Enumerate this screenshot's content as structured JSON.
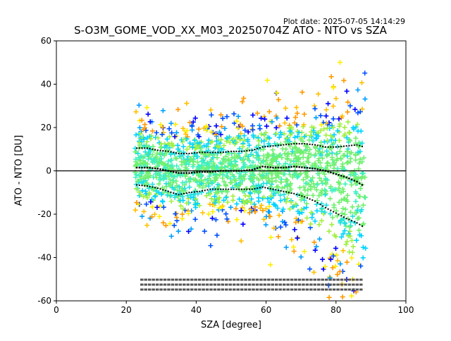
{
  "header": {
    "plot_date": "Plot date: 2025-07-05 14:14:29",
    "title": "S-O3M_GOME_VOD_XX_M03_20250704Z ATO - NTO vs SZA"
  },
  "chart_data": {
    "type": "scatter",
    "title": "S-O3M_GOME_VOD_XX_M03_20250704Z ATO - NTO vs SZA",
    "xlabel": "SZA [degree]",
    "ylabel": "ATO - NTO [DU]",
    "xlim": [
      0,
      100
    ],
    "ylim": [
      -60,
      60
    ],
    "xticks": [
      0,
      20,
      40,
      60,
      80,
      100
    ],
    "yticks": [
      -60,
      -40,
      -20,
      0,
      20,
      40,
      60
    ],
    "grid": false,
    "reference_line": {
      "y": 0,
      "color": "#000000"
    },
    "marker": "+",
    "point_colors": [
      "#0000ff",
      "#0050ff",
      "#00a0ff",
      "#00d4ff",
      "#20e0e0",
      "#40f0c0",
      "#70f070",
      "#a0f040",
      "#ffee00",
      "#ffc000",
      "#ff9900"
    ],
    "scatter_regions": [
      {
        "x_range": [
          22.5,
          88.5
        ],
        "color_band": "core",
        "description": ""
      }
    ],
    "mean_curve": {
      "x": [
        23,
        26,
        29,
        32,
        35,
        38,
        41,
        44,
        47,
        50,
        53,
        56,
        59,
        62,
        65,
        68,
        71,
        74,
        77,
        80,
        83,
        86,
        88
      ],
      "y": [
        1.5,
        1.5,
        1.0,
        0.0,
        -1.0,
        -1.0,
        -0.5,
        -0.5,
        0.0,
        0.0,
        0.0,
        0.5,
        2.0,
        1.5,
        1.5,
        2.0,
        1.5,
        1.0,
        0.0,
        -1.5,
        -3.0,
        -5.0,
        -7.0
      ]
    },
    "upper_std_curve": {
      "x": [
        23,
        26,
        29,
        32,
        35,
        38,
        41,
        44,
        47,
        50,
        53,
        56,
        59,
        62,
        65,
        68,
        71,
        74,
        77,
        80,
        83,
        86,
        88
      ],
      "y": [
        10.5,
        10.5,
        9.5,
        9.0,
        8.0,
        8.0,
        8.5,
        8.5,
        8.5,
        9.0,
        9.0,
        9.5,
        11.0,
        11.5,
        12.0,
        12.5,
        12.5,
        12.0,
        11.0,
        11.0,
        11.5,
        12.0,
        11.0
      ]
    },
    "lower_std_curve": {
      "x": [
        23,
        26,
        29,
        32,
        35,
        38,
        41,
        44,
        47,
        50,
        53,
        56,
        59,
        62,
        65,
        68,
        71,
        74,
        77,
        80,
        83,
        86,
        88
      ],
      "y": [
        -6.5,
        -7.0,
        -8.0,
        -9.5,
        -11.0,
        -10.0,
        -9.5,
        -8.5,
        -8.5,
        -8.5,
        -8.5,
        -8.5,
        -7.5,
        -8.5,
        -9.5,
        -10.5,
        -12.0,
        -14.0,
        -17.0,
        -19.5,
        -22.0,
        -24.0,
        -26.0
      ]
    },
    "count_labels_y": -53
  }
}
